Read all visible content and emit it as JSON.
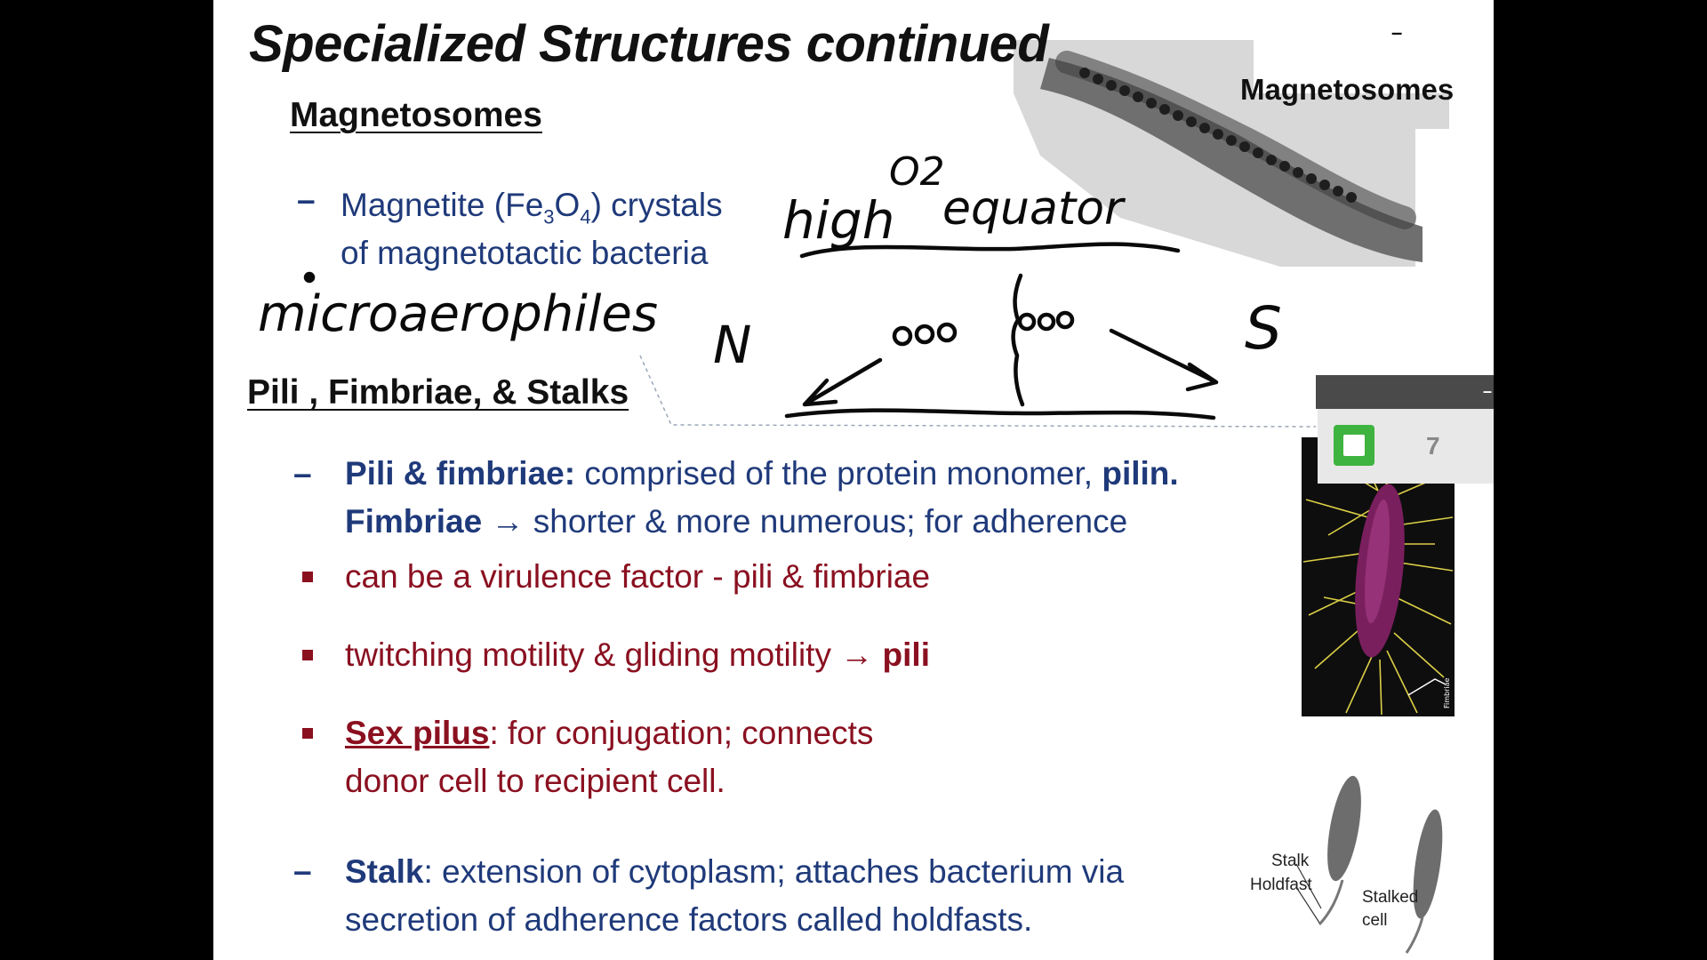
{
  "slide": {
    "title": "Specialized Structures continued",
    "magnetosomes": {
      "heading": "Magnetosomes",
      "bullet": {
        "line1_pre": "Magnetite (Fe",
        "sub1": "3",
        "mid": "O",
        "sub2": "4",
        "line1_post": ") crystals",
        "line2": "of magnetotactic bacteria"
      },
      "image_label": "Magnetosomes"
    },
    "handwriting": {
      "microaerophiles": "microaerophiles",
      "high": "high",
      "o2": "O2",
      "equator": "equator",
      "north": "N",
      "south": "S"
    },
    "pili_section": {
      "heading": "Pili , Fimbriae, & Stalks",
      "item1": {
        "bold_term": "Pili & fimbriae:",
        "text": " comprised of the protein monomer, ",
        "bold_end": "pilin.",
        "line2_bold": "Fimbriae",
        "arrow": "→",
        "line2_text": " shorter & more numerous; for adherence"
      },
      "sub1": "can be a virulence factor - pili & fimbriae",
      "sub2": {
        "text": "twitching motility & gliding motility ",
        "arrow": "→",
        "bold": " pili"
      },
      "sub3": {
        "term": "Sex pilus",
        "line1": ":  for conjugation; connects",
        "line2": "donor cell to recipient cell."
      },
      "item2": {
        "term": "Stalk",
        "line1": ": extension of cytoplasm; attaches bacterium via",
        "line2": "secretion of  adherence factors called holdfasts."
      }
    },
    "fimbriae_image_label": "Fimbriae",
    "stalk_diagram": {
      "stalk": "Stalk",
      "holdfast": "Holdfast",
      "stalked": "Stalked",
      "cell": "cell"
    },
    "panel": {
      "number": "7",
      "minimize": "–"
    },
    "corner_mark": "–"
  }
}
